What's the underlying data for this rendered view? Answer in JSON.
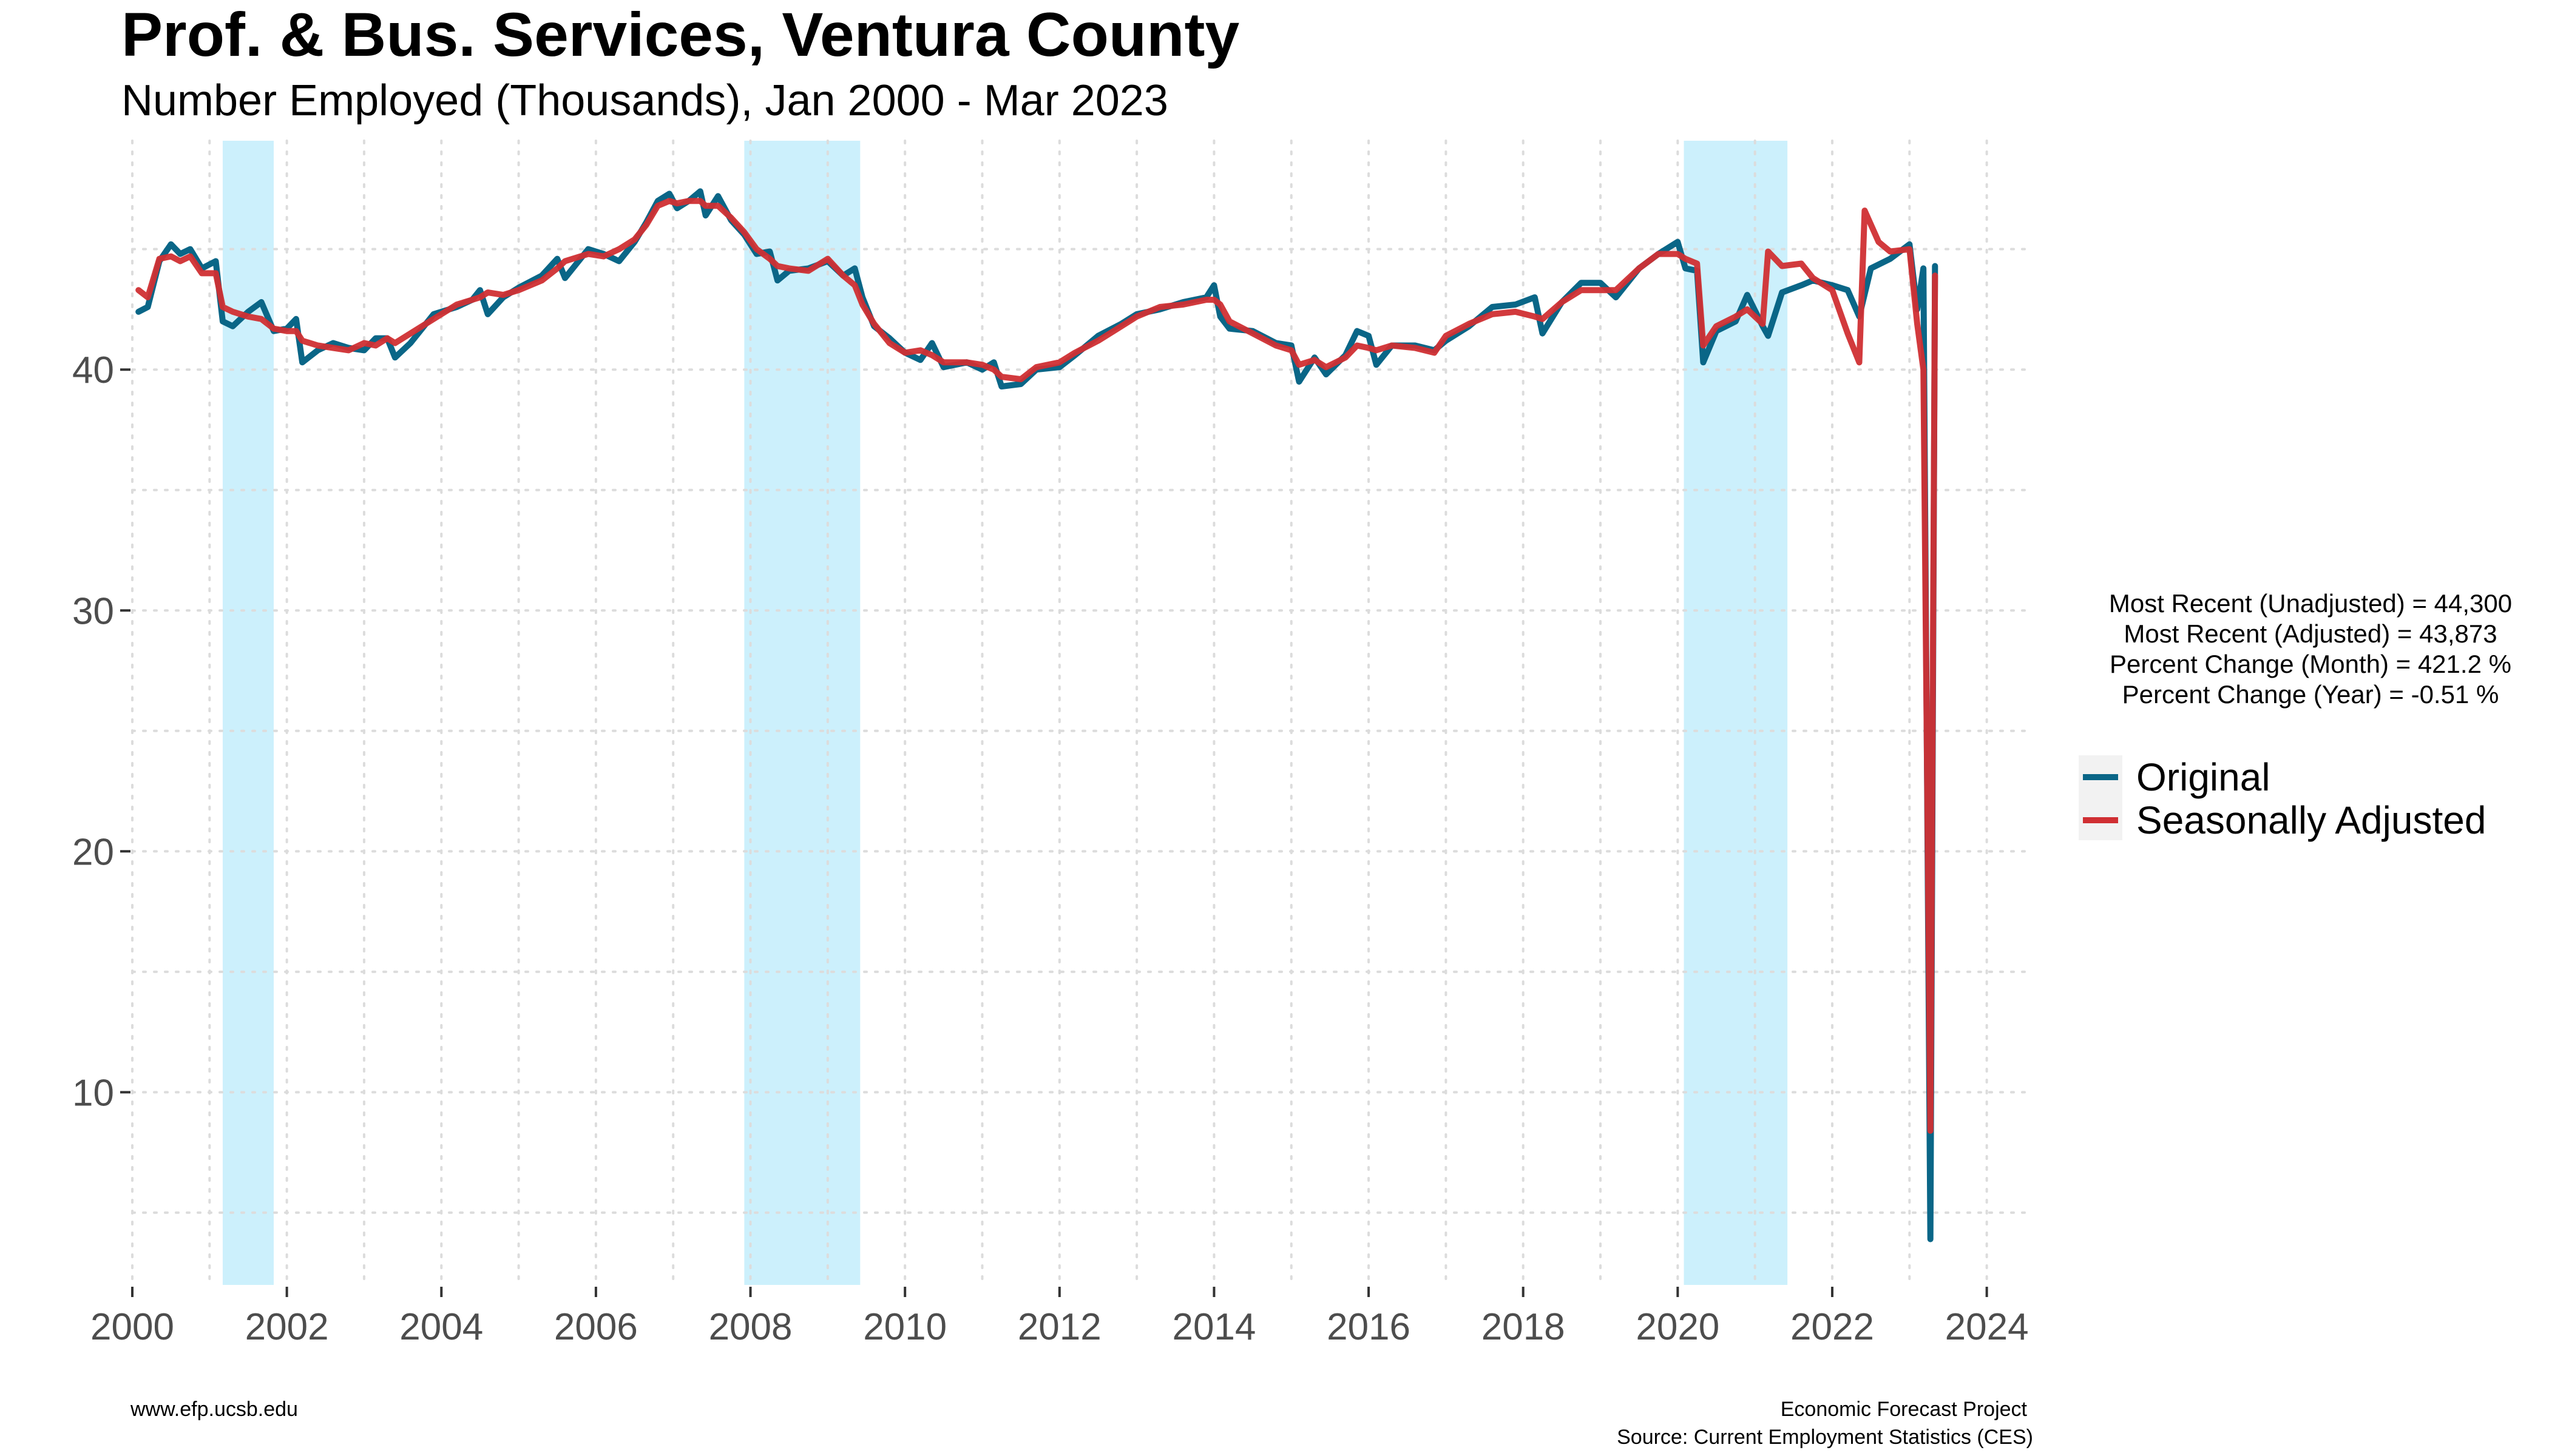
{
  "chart_data": {
    "type": "line",
    "title": "Prof. & Bus. Services, Ventura County",
    "subtitle": "Number Employed (Thousands), Jan 2000 - Mar 2023",
    "xlim": [
      2000,
      2024.6
    ],
    "ylim": [
      2,
      49.5
    ],
    "x_ticks": [
      2000,
      2002,
      2004,
      2006,
      2008,
      2010,
      2012,
      2014,
      2016,
      2018,
      2020,
      2022,
      2024
    ],
    "y_ticks": [
      10,
      20,
      30,
      40
    ],
    "grid": true,
    "recession_bands": [
      [
        2001.17,
        2001.83
      ],
      [
        2007.92,
        2009.42
      ],
      [
        2020.08,
        2021.42
      ]
    ],
    "recession_color": "#ccf0fc",
    "series": [
      {
        "name": "Original",
        "color": "#0a6687",
        "points": [
          [
            2000.08,
            42.4
          ],
          [
            2000.2,
            42.6
          ],
          [
            2000.35,
            44.5
          ],
          [
            2000.5,
            45.2
          ],
          [
            2000.62,
            44.8
          ],
          [
            2000.75,
            45.0
          ],
          [
            2000.9,
            44.2
          ],
          [
            2001.08,
            44.5
          ],
          [
            2001.17,
            42.0
          ],
          [
            2001.3,
            41.8
          ],
          [
            2001.5,
            42.4
          ],
          [
            2001.67,
            42.8
          ],
          [
            2001.83,
            41.6
          ],
          [
            2002.0,
            41.7
          ],
          [
            2002.12,
            42.1
          ],
          [
            2002.2,
            40.3
          ],
          [
            2002.4,
            40.8
          ],
          [
            2002.6,
            41.1
          ],
          [
            2002.8,
            40.9
          ],
          [
            2003.0,
            40.8
          ],
          [
            2003.15,
            41.3
          ],
          [
            2003.3,
            41.3
          ],
          [
            2003.4,
            40.5
          ],
          [
            2003.6,
            41.1
          ],
          [
            2003.9,
            42.3
          ],
          [
            2004.2,
            42.6
          ],
          [
            2004.4,
            42.9
          ],
          [
            2004.5,
            43.3
          ],
          [
            2004.6,
            42.3
          ],
          [
            2004.8,
            43.0
          ],
          [
            2005.0,
            43.4
          ],
          [
            2005.3,
            43.9
          ],
          [
            2005.5,
            44.6
          ],
          [
            2005.6,
            43.8
          ],
          [
            2005.9,
            45.0
          ],
          [
            2006.1,
            44.8
          ],
          [
            2006.3,
            44.5
          ],
          [
            2006.5,
            45.3
          ],
          [
            2006.65,
            46.1
          ],
          [
            2006.8,
            47.0
          ],
          [
            2006.95,
            47.3
          ],
          [
            2007.05,
            46.7
          ],
          [
            2007.2,
            47.0
          ],
          [
            2007.35,
            47.4
          ],
          [
            2007.42,
            46.4
          ],
          [
            2007.58,
            47.2
          ],
          [
            2007.75,
            46.2
          ],
          [
            2007.92,
            45.6
          ],
          [
            2008.08,
            44.8
          ],
          [
            2008.25,
            44.9
          ],
          [
            2008.35,
            43.7
          ],
          [
            2008.5,
            44.1
          ],
          [
            2008.75,
            44.2
          ],
          [
            2009.0,
            44.5
          ],
          [
            2009.2,
            43.9
          ],
          [
            2009.35,
            44.2
          ],
          [
            2009.45,
            43.0
          ],
          [
            2009.6,
            41.8
          ],
          [
            2009.8,
            41.3
          ],
          [
            2010.0,
            40.7
          ],
          [
            2010.2,
            40.4
          ],
          [
            2010.35,
            41.1
          ],
          [
            2010.5,
            40.1
          ],
          [
            2010.8,
            40.3
          ],
          [
            2011.0,
            40.0
          ],
          [
            2011.15,
            40.3
          ],
          [
            2011.25,
            39.3
          ],
          [
            2011.5,
            39.4
          ],
          [
            2011.7,
            40.0
          ],
          [
            2012.0,
            40.1
          ],
          [
            2012.2,
            40.6
          ],
          [
            2012.5,
            41.4
          ],
          [
            2012.8,
            41.9
          ],
          [
            2013.0,
            42.3
          ],
          [
            2013.3,
            42.5
          ],
          [
            2013.6,
            42.8
          ],
          [
            2013.9,
            43.0
          ],
          [
            2014.0,
            43.5
          ],
          [
            2014.08,
            42.2
          ],
          [
            2014.2,
            41.7
          ],
          [
            2014.5,
            41.6
          ],
          [
            2014.8,
            41.1
          ],
          [
            2015.0,
            41.0
          ],
          [
            2015.1,
            39.5
          ],
          [
            2015.3,
            40.5
          ],
          [
            2015.45,
            39.8
          ],
          [
            2015.7,
            40.6
          ],
          [
            2015.85,
            41.6
          ],
          [
            2016.0,
            41.4
          ],
          [
            2016.1,
            40.2
          ],
          [
            2016.3,
            41.0
          ],
          [
            2016.6,
            41.0
          ],
          [
            2016.85,
            40.8
          ],
          [
            2017.0,
            41.2
          ],
          [
            2017.3,
            41.8
          ],
          [
            2017.6,
            42.6
          ],
          [
            2017.9,
            42.7
          ],
          [
            2018.15,
            43.0
          ],
          [
            2018.25,
            41.5
          ],
          [
            2018.5,
            42.8
          ],
          [
            2018.75,
            43.6
          ],
          [
            2019.0,
            43.6
          ],
          [
            2019.2,
            43.0
          ],
          [
            2019.5,
            44.2
          ],
          [
            2019.75,
            44.8
          ],
          [
            2020.0,
            45.3
          ],
          [
            2020.1,
            44.2
          ],
          [
            2020.25,
            44.1
          ],
          [
            2020.33,
            40.3
          ],
          [
            2020.5,
            41.6
          ],
          [
            2020.75,
            42.0
          ],
          [
            2020.9,
            43.1
          ],
          [
            2021.1,
            41.8
          ],
          [
            2021.17,
            41.4
          ],
          [
            2021.35,
            43.2
          ],
          [
            2021.6,
            43.5
          ],
          [
            2021.75,
            43.7
          ],
          [
            2022.0,
            43.5
          ],
          [
            2022.2,
            43.3
          ],
          [
            2022.35,
            42.2
          ],
          [
            2022.5,
            44.2
          ],
          [
            2022.75,
            44.6
          ],
          [
            2023.0,
            45.2
          ],
          [
            2023.1,
            42.5
          ],
          [
            2023.18,
            44.2
          ],
          [
            2023.27,
            3.9
          ],
          [
            2023.33,
            44.3
          ]
        ]
      },
      {
        "name": "Seasonally Adjusted",
        "color": "#d02f33",
        "points": [
          [
            2000.08,
            43.3
          ],
          [
            2000.2,
            43.0
          ],
          [
            2000.35,
            44.6
          ],
          [
            2000.5,
            44.7
          ],
          [
            2000.62,
            44.5
          ],
          [
            2000.75,
            44.7
          ],
          [
            2000.9,
            44.0
          ],
          [
            2001.08,
            44.0
          ],
          [
            2001.17,
            42.6
          ],
          [
            2001.3,
            42.4
          ],
          [
            2001.5,
            42.2
          ],
          [
            2001.67,
            42.1
          ],
          [
            2001.83,
            41.7
          ],
          [
            2002.0,
            41.6
          ],
          [
            2002.12,
            41.6
          ],
          [
            2002.2,
            41.2
          ],
          [
            2002.4,
            41.0
          ],
          [
            2002.6,
            40.9
          ],
          [
            2002.8,
            40.8
          ],
          [
            2003.0,
            41.1
          ],
          [
            2003.15,
            41.0
          ],
          [
            2003.3,
            41.3
          ],
          [
            2003.4,
            41.1
          ],
          [
            2003.6,
            41.5
          ],
          [
            2003.9,
            42.1
          ],
          [
            2004.2,
            42.7
          ],
          [
            2004.4,
            42.9
          ],
          [
            2004.5,
            43.0
          ],
          [
            2004.6,
            43.2
          ],
          [
            2004.8,
            43.1
          ],
          [
            2005.0,
            43.3
          ],
          [
            2005.3,
            43.7
          ],
          [
            2005.5,
            44.2
          ],
          [
            2005.6,
            44.5
          ],
          [
            2005.9,
            44.8
          ],
          [
            2006.1,
            44.7
          ],
          [
            2006.3,
            45.0
          ],
          [
            2006.5,
            45.4
          ],
          [
            2006.65,
            46.0
          ],
          [
            2006.8,
            46.8
          ],
          [
            2006.95,
            47.0
          ],
          [
            2007.05,
            46.9
          ],
          [
            2007.2,
            47.0
          ],
          [
            2007.35,
            47.0
          ],
          [
            2007.42,
            46.8
          ],
          [
            2007.58,
            46.8
          ],
          [
            2007.75,
            46.3
          ],
          [
            2007.92,
            45.7
          ],
          [
            2008.08,
            45.0
          ],
          [
            2008.25,
            44.6
          ],
          [
            2008.35,
            44.3
          ],
          [
            2008.5,
            44.2
          ],
          [
            2008.75,
            44.1
          ],
          [
            2009.0,
            44.6
          ],
          [
            2009.2,
            43.9
          ],
          [
            2009.35,
            43.5
          ],
          [
            2009.45,
            42.7
          ],
          [
            2009.6,
            41.9
          ],
          [
            2009.8,
            41.1
          ],
          [
            2010.0,
            40.7
          ],
          [
            2010.2,
            40.8
          ],
          [
            2010.35,
            40.6
          ],
          [
            2010.5,
            40.3
          ],
          [
            2010.8,
            40.3
          ],
          [
            2011.0,
            40.2
          ],
          [
            2011.15,
            40.0
          ],
          [
            2011.25,
            39.7
          ],
          [
            2011.5,
            39.6
          ],
          [
            2011.7,
            40.1
          ],
          [
            2012.0,
            40.3
          ],
          [
            2012.2,
            40.7
          ],
          [
            2012.5,
            41.2
          ],
          [
            2012.8,
            41.8
          ],
          [
            2013.0,
            42.2
          ],
          [
            2013.3,
            42.6
          ],
          [
            2013.6,
            42.7
          ],
          [
            2013.9,
            42.9
          ],
          [
            2014.0,
            42.9
          ],
          [
            2014.08,
            42.7
          ],
          [
            2014.2,
            42.0
          ],
          [
            2014.5,
            41.5
          ],
          [
            2014.8,
            41.0
          ],
          [
            2015.0,
            40.8
          ],
          [
            2015.1,
            40.2
          ],
          [
            2015.3,
            40.4
          ],
          [
            2015.45,
            40.1
          ],
          [
            2015.7,
            40.5
          ],
          [
            2015.85,
            41.0
          ],
          [
            2016.0,
            40.9
          ],
          [
            2016.1,
            40.8
          ],
          [
            2016.3,
            41.0
          ],
          [
            2016.6,
            40.9
          ],
          [
            2016.85,
            40.7
          ],
          [
            2017.0,
            41.4
          ],
          [
            2017.3,
            41.9
          ],
          [
            2017.6,
            42.3
          ],
          [
            2017.9,
            42.4
          ],
          [
            2018.15,
            42.2
          ],
          [
            2018.25,
            42.1
          ],
          [
            2018.5,
            42.8
          ],
          [
            2018.75,
            43.3
          ],
          [
            2019.0,
            43.3
          ],
          [
            2019.2,
            43.3
          ],
          [
            2019.5,
            44.2
          ],
          [
            2019.75,
            44.8
          ],
          [
            2020.0,
            44.8
          ],
          [
            2020.1,
            44.6
          ],
          [
            2020.25,
            44.4
          ],
          [
            2020.33,
            41.0
          ],
          [
            2020.5,
            41.8
          ],
          [
            2020.75,
            42.2
          ],
          [
            2020.9,
            42.5
          ],
          [
            2021.1,
            41.9
          ],
          [
            2021.17,
            44.9
          ],
          [
            2021.35,
            44.3
          ],
          [
            2021.6,
            44.4
          ],
          [
            2021.75,
            43.8
          ],
          [
            2022.0,
            43.3
          ],
          [
            2022.2,
            41.5
          ],
          [
            2022.35,
            40.3
          ],
          [
            2022.42,
            46.6
          ],
          [
            2022.6,
            45.3
          ],
          [
            2022.75,
            44.9
          ],
          [
            2023.0,
            45.0
          ],
          [
            2023.1,
            41.9
          ],
          [
            2023.18,
            40.0
          ],
          [
            2023.27,
            8.4
          ],
          [
            2023.33,
            43.9
          ]
        ]
      }
    ]
  },
  "stats": [
    "Most Recent (Unadjusted) = 44,300",
    "Most Recent (Adjusted) = 43,873",
    "Percent Change (Month) = 421.2 %",
    "Percent Change (Year) = -0.51 %"
  ],
  "footer": {
    "left": "www.efp.ucsb.edu",
    "right_line1": "Economic Forecast Project",
    "right_line2": "Source: Current Employment Statistics (CES)"
  }
}
